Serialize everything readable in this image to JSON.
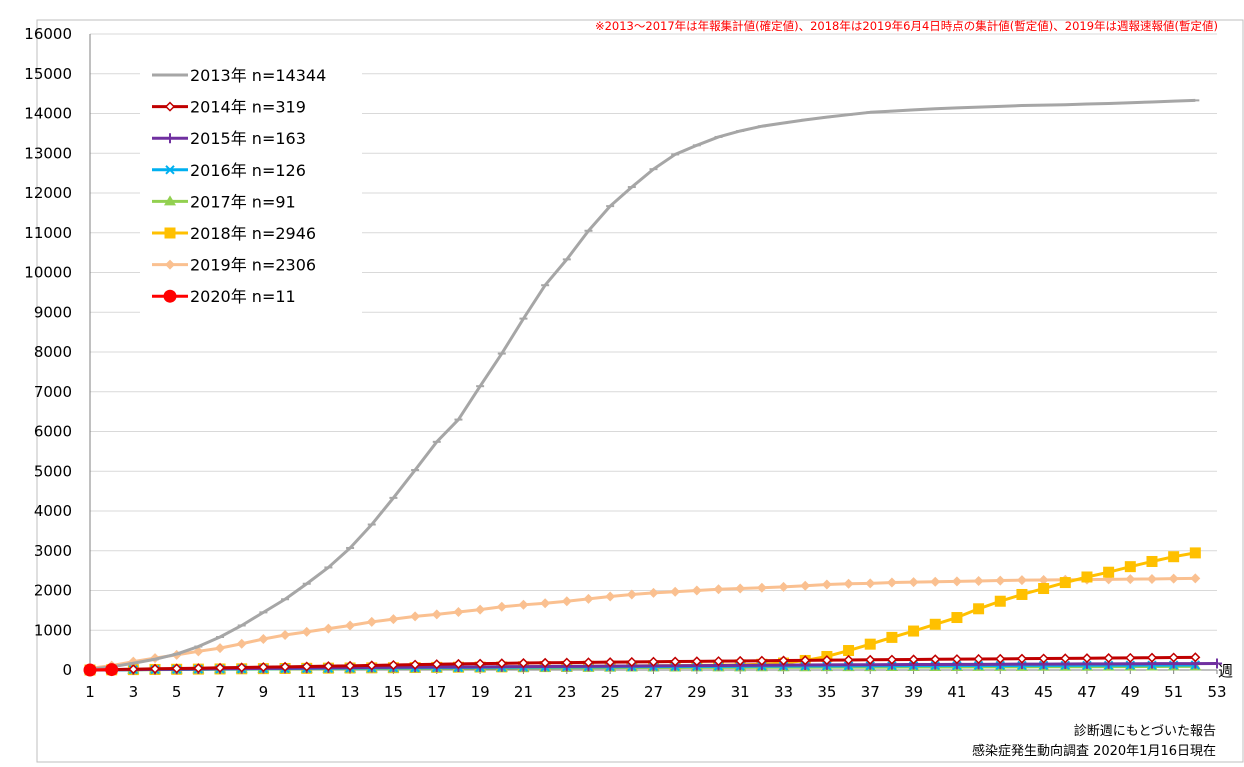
{
  "chart_data": {
    "type": "line",
    "note": "※2013～2017年は年報集計値(確定値)、2018年は2019年6月4日時点の集計値(暫定値)、2019年は週報速報値(暫定値)",
    "xlabel": "週",
    "ylabel": "",
    "xlim": [
      1,
      53
    ],
    "ylim": [
      0,
      16000
    ],
    "x_ticks": [
      1,
      3,
      5,
      7,
      9,
      11,
      13,
      15,
      17,
      19,
      21,
      23,
      25,
      27,
      29,
      31,
      33,
      35,
      37,
      39,
      41,
      43,
      45,
      47,
      49,
      51,
      53
    ],
    "y_ticks": [
      0,
      1000,
      2000,
      3000,
      4000,
      5000,
      6000,
      7000,
      8000,
      9000,
      10000,
      11000,
      12000,
      13000,
      14000,
      15000,
      16000
    ],
    "grid": "horizontal",
    "legend_position": "top-left",
    "footer": [
      "診断週にもとづいた報告",
      "感染症発生動向調査 2020年1月16日現在"
    ],
    "series": [
      {
        "name": "2013年 n=14344",
        "color": "#a6a6a6",
        "marker": "dash",
        "x": [
          1,
          2,
          3,
          4,
          5,
          6,
          7,
          8,
          9,
          10,
          11,
          12,
          13,
          14,
          15,
          16,
          17,
          18,
          19,
          20,
          21,
          22,
          23,
          24,
          25,
          26,
          27,
          28,
          29,
          30,
          31,
          32,
          33,
          34,
          35,
          36,
          37,
          38,
          39,
          40,
          41,
          42,
          43,
          44,
          45,
          46,
          47,
          48,
          49,
          50,
          51,
          52
        ],
        "values": [
          20,
          80,
          170,
          270,
          400,
          590,
          830,
          1120,
          1450,
          1780,
          2170,
          2580,
          3070,
          3660,
          4330,
          5030,
          5740,
          6300,
          7140,
          7960,
          8840,
          9680,
          10330,
          11050,
          11670,
          12150,
          12600,
          12970,
          13200,
          13410,
          13560,
          13680,
          13760,
          13840,
          13910,
          13970,
          14030,
          14060,
          14090,
          14120,
          14140,
          14160,
          14180,
          14200,
          14210,
          14220,
          14240,
          14250,
          14270,
          14290,
          14310,
          14330
        ]
      },
      {
        "name": "2014年 n=319",
        "color": "#c00000",
        "marker": "diamond-open",
        "x": [
          1,
          2,
          3,
          4,
          5,
          6,
          7,
          8,
          9,
          10,
          11,
          12,
          13,
          14,
          15,
          16,
          17,
          18,
          19,
          20,
          21,
          22,
          23,
          24,
          25,
          26,
          27,
          28,
          29,
          30,
          31,
          32,
          33,
          34,
          35,
          36,
          37,
          38,
          39,
          40,
          41,
          42,
          43,
          44,
          45,
          46,
          47,
          48,
          49,
          50,
          51,
          52
        ],
        "values": [
          0,
          10,
          20,
          30,
          38,
          45,
          55,
          63,
          72,
          80,
          88,
          96,
          105,
          115,
          125,
          135,
          145,
          153,
          160,
          168,
          175,
          181,
          186,
          192,
          197,
          202,
          208,
          213,
          218,
          223,
          228,
          233,
          238,
          243,
          248,
          253,
          257,
          261,
          265,
          269,
          273,
          277,
          281,
          285,
          289,
          293,
          297,
          301,
          305,
          309,
          314,
          319
        ]
      },
      {
        "name": "2015年 n=163",
        "color": "#7030a0",
        "marker": "plus",
        "x": [
          1,
          2,
          3,
          4,
          5,
          6,
          7,
          8,
          9,
          10,
          11,
          12,
          13,
          14,
          15,
          16,
          17,
          18,
          19,
          20,
          21,
          22,
          23,
          24,
          25,
          26,
          27,
          28,
          29,
          30,
          31,
          32,
          33,
          34,
          35,
          36,
          37,
          38,
          39,
          40,
          41,
          42,
          43,
          44,
          45,
          46,
          47,
          48,
          49,
          50,
          51,
          52,
          53
        ],
        "values": [
          0,
          5,
          10,
          15,
          20,
          25,
          30,
          35,
          40,
          45,
          50,
          55,
          60,
          65,
          68,
          71,
          74,
          77,
          80,
          83,
          86,
          89,
          92,
          95,
          98,
          101,
          104,
          107,
          110,
          113,
          116,
          119,
          122,
          125,
          128,
          131,
          133,
          135,
          137,
          139,
          141,
          143,
          145,
          147,
          149,
          151,
          153,
          155,
          157,
          159,
          160,
          161,
          163
        ]
      },
      {
        "name": "2016年 n=126",
        "color": "#00b0f0",
        "marker": "x",
        "x": [
          1,
          2,
          3,
          4,
          5,
          6,
          7,
          8,
          9,
          10,
          11,
          12,
          13,
          14,
          15,
          16,
          17,
          18,
          19,
          20,
          21,
          22,
          23,
          24,
          25,
          26,
          27,
          28,
          29,
          30,
          31,
          32,
          33,
          34,
          35,
          36,
          37,
          38,
          39,
          40,
          41,
          42,
          43,
          44,
          45,
          46,
          47,
          48,
          49,
          50,
          51,
          52
        ],
        "values": [
          0,
          4,
          8,
          12,
          16,
          20,
          24,
          28,
          32,
          36,
          40,
          44,
          48,
          51,
          54,
          57,
          60,
          63,
          66,
          69,
          72,
          75,
          78,
          80,
          82,
          84,
          86,
          88,
          90,
          92,
          94,
          96,
          98,
          100,
          102,
          104,
          106,
          108,
          110,
          111,
          112,
          113,
          114,
          115,
          116,
          117,
          118,
          119,
          120,
          122,
          124,
          126
        ]
      },
      {
        "name": "2017年 n=91",
        "color": "#92d050",
        "marker": "triangle",
        "x": [
          1,
          2,
          3,
          4,
          5,
          6,
          7,
          8,
          9,
          10,
          11,
          12,
          13,
          14,
          15,
          16,
          17,
          18,
          19,
          20,
          21,
          22,
          23,
          24,
          25,
          26,
          27,
          28,
          29,
          30,
          31,
          32,
          33,
          34,
          35,
          36,
          37,
          38,
          39,
          40,
          41,
          42,
          43,
          44,
          45,
          46,
          47,
          48,
          49,
          50,
          51,
          52
        ],
        "values": [
          0,
          3,
          6,
          9,
          12,
          15,
          18,
          21,
          24,
          27,
          30,
          33,
          36,
          38,
          40,
          42,
          44,
          46,
          48,
          50,
          52,
          54,
          56,
          58,
          60,
          62,
          63,
          64,
          65,
          66,
          67,
          68,
          69,
          70,
          71,
          72,
          73,
          74,
          75,
          76,
          77,
          78,
          79,
          80,
          81,
          82,
          83,
          84,
          86,
          88,
          90,
          91
        ]
      },
      {
        "name": "2018年 n=2946",
        "color": "#ffc000",
        "marker": "square",
        "x": [
          1,
          2,
          3,
          4,
          5,
          6,
          7,
          8,
          9,
          10,
          11,
          12,
          13,
          14,
          15,
          16,
          17,
          18,
          19,
          20,
          21,
          22,
          23,
          24,
          25,
          26,
          27,
          28,
          29,
          30,
          31,
          32,
          33,
          34,
          35,
          36,
          37,
          38,
          39,
          40,
          41,
          42,
          43,
          44,
          45,
          46,
          47,
          48,
          49,
          50,
          51,
          52
        ],
        "values": [
          0,
          5,
          10,
          14,
          18,
          22,
          26,
          30,
          34,
          38,
          42,
          46,
          50,
          54,
          58,
          62,
          66,
          70,
          74,
          78,
          82,
          86,
          90,
          94,
          98,
          102,
          106,
          110,
          115,
          120,
          130,
          145,
          175,
          240,
          340,
          490,
          650,
          820,
          980,
          1150,
          1320,
          1540,
          1730,
          1900,
          2050,
          2200,
          2340,
          2460,
          2600,
          2730,
          2850,
          2946
        ]
      },
      {
        "name": "2019年 n=2306",
        "color": "#fac090",
        "marker": "diamond",
        "x": [
          1,
          2,
          3,
          4,
          5,
          6,
          7,
          8,
          9,
          10,
          11,
          12,
          13,
          14,
          15,
          16,
          17,
          18,
          19,
          20,
          21,
          22,
          23,
          24,
          25,
          26,
          27,
          28,
          29,
          30,
          31,
          32,
          33,
          34,
          35,
          36,
          37,
          38,
          39,
          40,
          41,
          42,
          43,
          44,
          45,
          46,
          47,
          48,
          49,
          50,
          51,
          52
        ],
        "values": [
          40,
          110,
          210,
          300,
          380,
          470,
          550,
          660,
          780,
          880,
          960,
          1040,
          1120,
          1210,
          1280,
          1350,
          1400,
          1460,
          1520,
          1590,
          1640,
          1680,
          1730,
          1790,
          1850,
          1900,
          1940,
          1970,
          2000,
          2030,
          2050,
          2070,
          2090,
          2120,
          2150,
          2170,
          2180,
          2200,
          2210,
          2220,
          2230,
          2240,
          2250,
          2260,
          2265,
          2270,
          2275,
          2280,
          2285,
          2290,
          2300,
          2306
        ]
      },
      {
        "name": "2020年 n=11",
        "color": "#ff0000",
        "marker": "circle",
        "x": [
          1,
          2
        ],
        "values": [
          0,
          11
        ]
      }
    ]
  }
}
